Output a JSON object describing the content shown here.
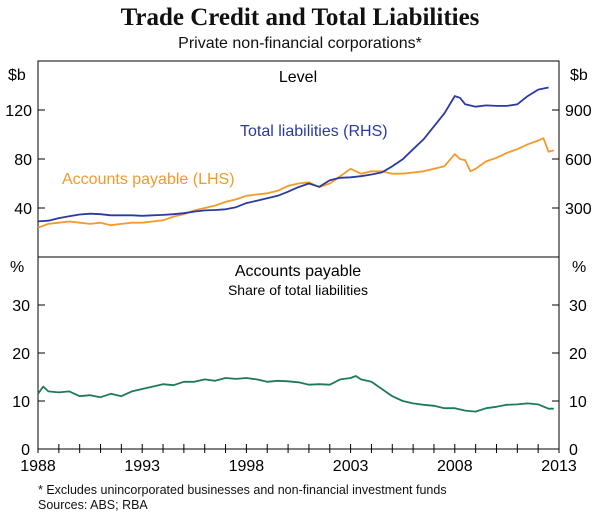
{
  "title": "Trade Credit and Total Liabilities",
  "subtitle": "Private non-financial corporations*",
  "footnote": "*    Excludes unincorporated businesses and non-financial investment funds",
  "sources": "Sources: ABS; RBA",
  "colors": {
    "total_liabilities": "#2b3a9e",
    "accounts_payable": "#f39a2a",
    "share": "#1f7a5a",
    "axis": "#000000",
    "grid": "#bdbdbd"
  },
  "chart_data": [
    {
      "type": "line",
      "panel_title": "Level",
      "left_unit": "$b",
      "right_unit": "$b",
      "ylim_left": [
        0,
        160
      ],
      "yticks_left": [
        40,
        80,
        120
      ],
      "ylim_right": [
        0,
        1200
      ],
      "yticks_right": [
        300,
        600,
        900
      ],
      "xlim": [
        1988,
        2013
      ],
      "series": [
        {
          "name": "Total liabilities (RHS)",
          "axis": "right",
          "x": [
            1988,
            1988.5,
            1989,
            1989.5,
            1990,
            1990.5,
            1991,
            1991.5,
            1992,
            1992.5,
            1993,
            1993.5,
            1994,
            1994.5,
            1995,
            1995.5,
            1996,
            1996.5,
            1997,
            1997.5,
            1998,
            1998.5,
            1999,
            1999.5,
            2000,
            2000.5,
            2001,
            2001.5,
            2002,
            2002.5,
            2003,
            2003.5,
            2004,
            2004.5,
            2005,
            2005.5,
            2006,
            2006.5,
            2007,
            2007.5,
            2008,
            2008.25,
            2008.5,
            2009,
            2009.5,
            2010,
            2010.5,
            2011,
            2011.5,
            2012,
            2012.5
          ],
          "values": [
            218,
            222,
            238,
            250,
            260,
            265,
            262,
            255,
            255,
            255,
            252,
            255,
            258,
            262,
            268,
            278,
            285,
            288,
            292,
            305,
            330,
            345,
            360,
            375,
            400,
            428,
            450,
            430,
            470,
            485,
            488,
            495,
            505,
            518,
            555,
            598,
            660,
            720,
            800,
            880,
            985,
            975,
            935,
            920,
            928,
            925,
            925,
            935,
            985,
            1025,
            1038
          ]
        },
        {
          "name": "Accounts payable (LHS)",
          "axis": "left",
          "x": [
            1988,
            1988.5,
            1989,
            1989.5,
            1990,
            1990.5,
            1991,
            1991.5,
            1992,
            1992.5,
            1993,
            1993.5,
            1994,
            1994.5,
            1995,
            1995.5,
            1996,
            1996.5,
            1997,
            1997.5,
            1998,
            1998.5,
            1999,
            1999.5,
            2000,
            2000.5,
            2001,
            2001.5,
            2002,
            2002.5,
            2003,
            2003.5,
            2004,
            2004.5,
            2005,
            2005.5,
            2006,
            2006.5,
            2007,
            2007.5,
            2008,
            2008.25,
            2008.5,
            2008.75,
            2009,
            2009.5,
            2010,
            2010.5,
            2011,
            2011.5,
            2012,
            2012.25,
            2012.5,
            2012.75
          ],
          "values": [
            24,
            27,
            28,
            29,
            28,
            27,
            28,
            26,
            27,
            28,
            28,
            29,
            30,
            33,
            35,
            38,
            40,
            42,
            45,
            47,
            50,
            51,
            52,
            54,
            58,
            60,
            61,
            57,
            60,
            66,
            72,
            68,
            70,
            70,
            68,
            68,
            69,
            70,
            72,
            74,
            84,
            80,
            79,
            70,
            72,
            78,
            81,
            85,
            88,
            92,
            95,
            97,
            86,
            87
          ]
        }
      ]
    },
    {
      "type": "line",
      "panel_title": "Accounts payable",
      "panel_subtitle": "Share of total liabilities",
      "left_unit": "%",
      "right_unit": "%",
      "ylim": [
        0,
        40
      ],
      "yticks": [
        0,
        10,
        20,
        30
      ],
      "xlim": [
        1988,
        2013
      ],
      "xticks": [
        1988,
        1993,
        1998,
        2003,
        2008,
        2013
      ],
      "series": [
        {
          "name": "Accounts payable share",
          "x": [
            1988,
            1988.25,
            1988.5,
            1989,
            1989.5,
            1990,
            1990.5,
            1991,
            1991.5,
            1992,
            1992.5,
            1993,
            1993.5,
            1994,
            1994.5,
            1995,
            1995.5,
            1996,
            1996.5,
            1997,
            1997.5,
            1998,
            1998.5,
            1999,
            1999.5,
            2000,
            2000.5,
            2001,
            2001.5,
            2002,
            2002.5,
            2003,
            2003.25,
            2003.5,
            2004,
            2004.5,
            2005,
            2005.5,
            2006,
            2006.5,
            2007,
            2007.5,
            2008,
            2008.5,
            2009,
            2009.5,
            2010,
            2010.5,
            2011,
            2011.5,
            2012,
            2012.5,
            2012.75
          ],
          "values": [
            11.5,
            13,
            12,
            11.8,
            12,
            11,
            11.2,
            10.8,
            11.5,
            11,
            12,
            12.5,
            13,
            13.5,
            13.3,
            14,
            14,
            14.5,
            14.2,
            14.8,
            14.6,
            14.8,
            14.5,
            14,
            14.2,
            14.1,
            13.9,
            13.4,
            13.5,
            13.4,
            14.5,
            14.8,
            15.2,
            14.5,
            14,
            12.5,
            11,
            10,
            9.5,
            9.2,
            9,
            8.5,
            8.5,
            8,
            7.8,
            8.5,
            8.8,
            9.2,
            9.3,
            9.5,
            9.3,
            8.4,
            8.4
          ]
        }
      ]
    }
  ]
}
